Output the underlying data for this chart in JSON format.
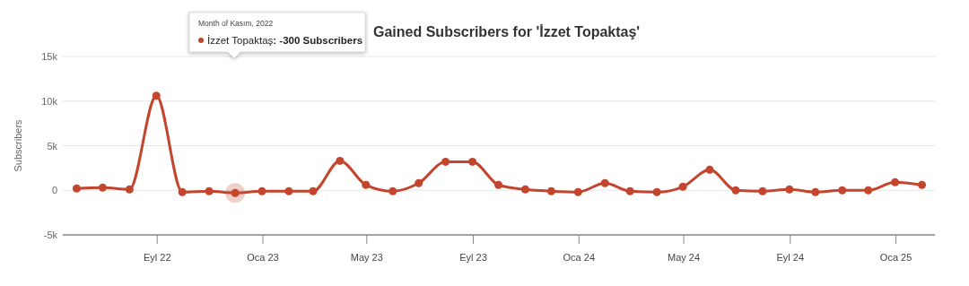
{
  "chart_data": {
    "type": "line",
    "title": "Gained Subscribers for 'İzzet Topaktaş'",
    "ylabel": "Subscribers",
    "x": [
      "2022-05-31",
      "2022-06-30",
      "2022-07-31",
      "2022-08-31",
      "2022-09-30",
      "2022-10-31",
      "2022-11-30",
      "2022-12-31",
      "2023-01-31",
      "2023-02-28",
      "2023-03-31",
      "2023-04-30",
      "2023-05-31",
      "2023-06-30",
      "2023-07-31",
      "2023-08-31",
      "2023-09-30",
      "2023-10-31",
      "2023-11-30",
      "2023-12-31",
      "2024-01-31",
      "2024-02-29",
      "2024-03-31",
      "2024-04-30",
      "2024-05-31",
      "2024-06-30",
      "2024-07-31",
      "2024-08-31",
      "2024-09-30",
      "2024-10-31",
      "2024-11-30",
      "2024-12-31",
      "2025-01-31"
    ],
    "series": [
      {
        "name": "İzzet Topaktaş",
        "color": "#c4452d",
        "values": [
          200,
          300,
          100,
          10600,
          -200,
          -100,
          -300,
          -100,
          -100,
          -100,
          3300,
          600,
          -100,
          800,
          3200,
          3200,
          600,
          100,
          -100,
          -200,
          800,
          -100,
          -200,
          400,
          2300,
          0,
          -100,
          100,
          -200,
          0,
          0,
          900,
          600
        ]
      }
    ],
    "xlim": [
      "2022-05-15",
      "2025-02-15"
    ],
    "xticks": [
      {
        "value": "2022-09-01",
        "label": "Eyl 22"
      },
      {
        "value": "2023-01-01",
        "label": "Oca 23"
      },
      {
        "value": "2023-05-01",
        "label": "May 23"
      },
      {
        "value": "2023-09-01",
        "label": "Eyl 23"
      },
      {
        "value": "2024-01-01",
        "label": "Oca 24"
      },
      {
        "value": "2024-05-01",
        "label": "May 24"
      },
      {
        "value": "2024-09-01",
        "label": "Eyl 24"
      },
      {
        "value": "2025-01-01",
        "label": "Oca 25"
      }
    ],
    "ylim": [
      -5000,
      15000
    ],
    "yticks": [
      {
        "value": -5000,
        "label": "-5k"
      },
      0,
      {
        "value": 5000,
        "label": "5k"
      },
      {
        "value": 10000,
        "label": "10k"
      },
      {
        "value": 15000,
        "label": "15k"
      }
    ],
    "grid": "y",
    "marker": "circle",
    "line_style": "solid",
    "annotations": [
      "Month of Kasım, 2022",
      ": -300 Subscribers"
    ]
  }
}
